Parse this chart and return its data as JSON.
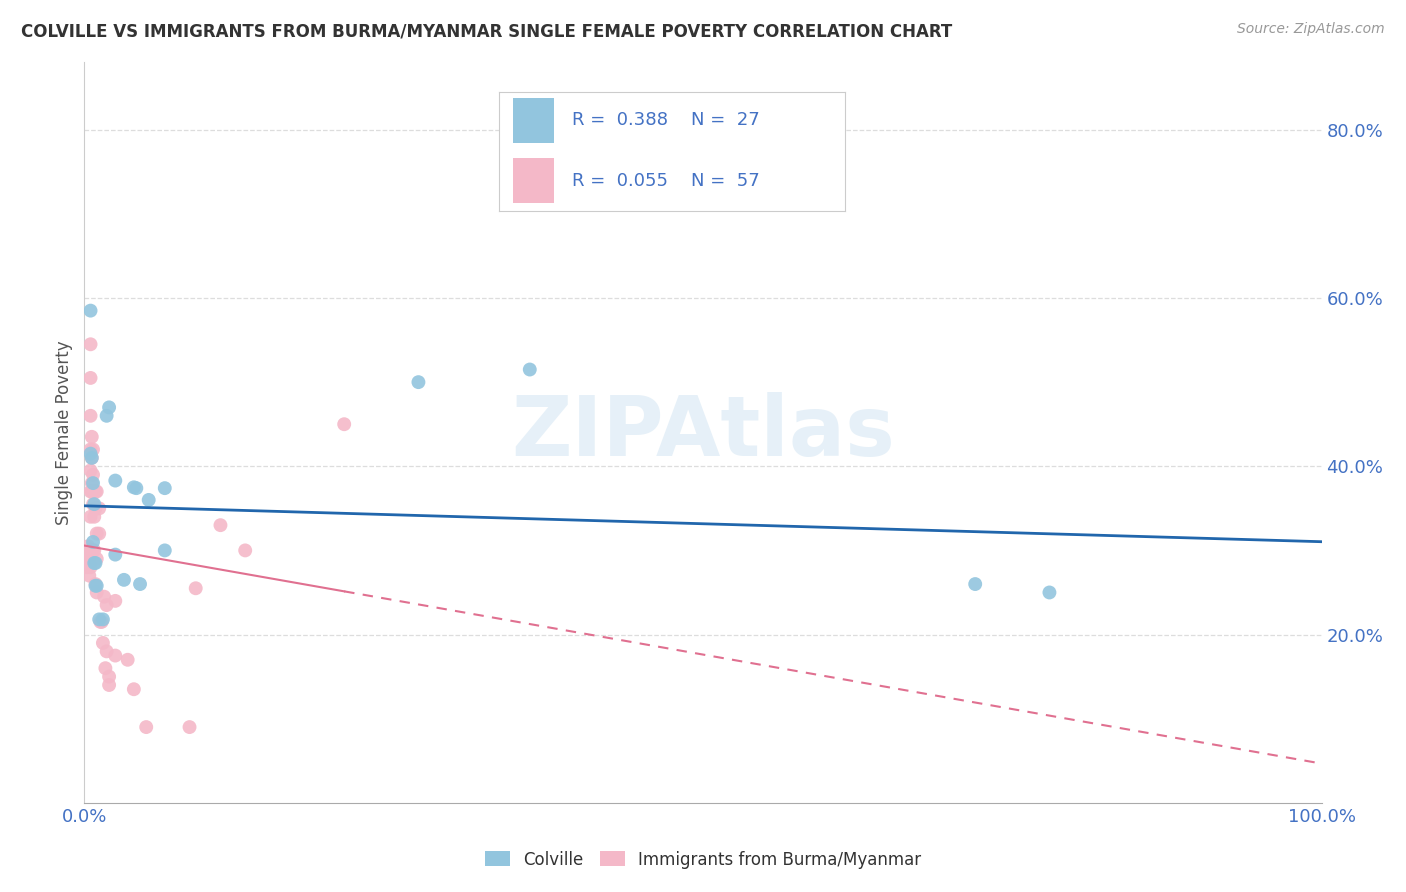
{
  "title": "COLVILLE VS IMMIGRANTS FROM BURMA/MYANMAR SINGLE FEMALE POVERTY CORRELATION CHART",
  "source": "Source: ZipAtlas.com",
  "ylabel": "Single Female Poverty",
  "xlim": [
    0,
    1.0
  ],
  "ylim": [
    0,
    0.88
  ],
  "xticks": [
    0.0,
    0.2,
    0.4,
    0.6,
    0.8,
    1.0
  ],
  "xticklabels": [
    "0.0%",
    "",
    "",
    "",
    "",
    "100.0%"
  ],
  "yticks": [
    0.2,
    0.4,
    0.6,
    0.8
  ],
  "yticklabels": [
    "20.0%",
    "40.0%",
    "60.0%",
    "80.0%"
  ],
  "colville_dot_color": "#92c5de",
  "burma_dot_color": "#f4b8c8",
  "colville_line_color": "#2166ac",
  "burma_line_color": "#e07090",
  "legend_R1": "0.388",
  "legend_N1": "27",
  "legend_R2": "0.055",
  "legend_N2": "57",
  "colville_x": [
    0.005,
    0.005,
    0.006,
    0.007,
    0.007,
    0.008,
    0.008,
    0.009,
    0.009,
    0.01,
    0.012,
    0.015,
    0.018,
    0.02,
    0.025,
    0.025,
    0.032,
    0.04,
    0.042,
    0.045,
    0.052,
    0.065,
    0.065,
    0.27,
    0.36,
    0.72,
    0.78
  ],
  "colville_y": [
    0.585,
    0.415,
    0.41,
    0.38,
    0.31,
    0.355,
    0.285,
    0.285,
    0.258,
    0.258,
    0.218,
    0.218,
    0.46,
    0.47,
    0.383,
    0.295,
    0.265,
    0.375,
    0.374,
    0.26,
    0.36,
    0.374,
    0.3,
    0.5,
    0.515,
    0.26,
    0.25
  ],
  "burma_x": [
    0.002,
    0.002,
    0.002,
    0.003,
    0.003,
    0.003,
    0.004,
    0.004,
    0.004,
    0.004,
    0.005,
    0.005,
    0.005,
    0.005,
    0.005,
    0.005,
    0.005,
    0.005,
    0.006,
    0.006,
    0.006,
    0.006,
    0.007,
    0.007,
    0.007,
    0.007,
    0.008,
    0.008,
    0.008,
    0.009,
    0.009,
    0.009,
    0.01,
    0.01,
    0.01,
    0.01,
    0.012,
    0.012,
    0.013,
    0.014,
    0.015,
    0.016,
    0.017,
    0.018,
    0.018,
    0.02,
    0.02,
    0.025,
    0.025,
    0.035,
    0.04,
    0.05,
    0.085,
    0.09,
    0.11,
    0.13,
    0.21
  ],
  "burma_y": [
    0.285,
    0.285,
    0.28,
    0.305,
    0.295,
    0.29,
    0.3,
    0.295,
    0.285,
    0.27,
    0.545,
    0.505,
    0.46,
    0.42,
    0.395,
    0.37,
    0.34,
    0.28,
    0.435,
    0.41,
    0.38,
    0.37,
    0.42,
    0.39,
    0.355,
    0.3,
    0.37,
    0.34,
    0.3,
    0.37,
    0.35,
    0.26,
    0.37,
    0.32,
    0.29,
    0.25,
    0.35,
    0.32,
    0.215,
    0.215,
    0.19,
    0.245,
    0.16,
    0.235,
    0.18,
    0.15,
    0.14,
    0.24,
    0.175,
    0.17,
    0.135,
    0.09,
    0.09,
    0.255,
    0.33,
    0.3,
    0.45
  ],
  "watermark": "ZIPAtlas",
  "background_color": "#ffffff",
  "grid_color": "#dddddd"
}
